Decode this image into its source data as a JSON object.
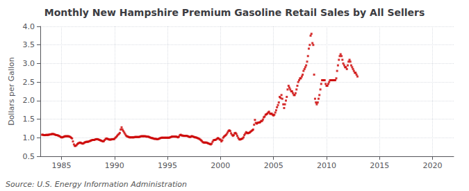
{
  "chart_data": {
    "type": "scatter",
    "title": "Monthly New Hampshire Premium Gasoline Retail Sales by All Sellers",
    "ylabel": "Dollars per Gallon",
    "annotations": [
      "Source: U.S. Energy Information Administration"
    ],
    "color": "#cc0000",
    "marker": "square",
    "grid": true,
    "xlim": [
      1983,
      2022
    ],
    "ylim": [
      0.5,
      4.0
    ],
    "xticks": [
      1985,
      1990,
      1995,
      2000,
      2005,
      2010,
      2015,
      2020
    ],
    "yticks": [
      0.5,
      {
        "value": 1.0,
        "label": "1.0"
      },
      1.5,
      {
        "value": 2.0,
        "label": "2.0"
      },
      2.5,
      {
        "value": 3.0,
        "label": "3.0"
      },
      3.5,
      {
        "value": 4.0,
        "label": "4.0"
      }
    ],
    "x": [
      1983.17,
      1983.25,
      1983.33,
      1983.42,
      1983.5,
      1983.58,
      1983.67,
      1983.75,
      1983.83,
      1983.92,
      1984.0,
      1984.08,
      1984.17,
      1984.25,
      1984.33,
      1984.42,
      1984.5,
      1984.58,
      1984.67,
      1984.75,
      1984.83,
      1984.92,
      1985.0,
      1985.08,
      1985.17,
      1985.25,
      1985.33,
      1985.42,
      1985.5,
      1985.58,
      1985.67,
      1985.75,
      1985.83,
      1985.92,
      1986.0,
      1986.08,
      1986.17,
      1986.25,
      1986.33,
      1986.42,
      1986.5,
      1986.58,
      1986.67,
      1986.75,
      1986.83,
      1986.92,
      1987.0,
      1987.08,
      1987.17,
      1987.25,
      1987.33,
      1987.42,
      1987.5,
      1987.58,
      1987.67,
      1987.75,
      1987.83,
      1987.92,
      1988.0,
      1988.08,
      1988.17,
      1988.25,
      1988.33,
      1988.42,
      1988.5,
      1988.58,
      1988.67,
      1988.75,
      1988.83,
      1988.92,
      1989.0,
      1989.08,
      1989.17,
      1989.25,
      1989.33,
      1989.42,
      1989.5,
      1989.58,
      1989.67,
      1989.75,
      1989.83,
      1989.92,
      1990.0,
      1990.08,
      1990.17,
      1990.25,
      1990.33,
      1990.42,
      1990.5,
      1990.58,
      1990.67,
      1990.75,
      1990.83,
      1990.92,
      1991.0,
      1991.08,
      1991.17,
      1991.25,
      1991.33,
      1991.42,
      1991.5,
      1991.58,
      1991.67,
      1991.75,
      1991.83,
      1991.92,
      1992.0,
      1992.08,
      1992.17,
      1992.25,
      1992.33,
      1992.42,
      1992.5,
      1992.58,
      1992.67,
      1992.75,
      1992.83,
      1992.92,
      1993.0,
      1993.08,
      1993.17,
      1993.25,
      1993.33,
      1993.42,
      1993.5,
      1993.58,
      1993.67,
      1993.75,
      1993.83,
      1993.92,
      1994.0,
      1994.08,
      1994.17,
      1994.25,
      1994.33,
      1994.42,
      1994.5,
      1994.58,
      1994.67,
      1994.75,
      1994.83,
      1994.92,
      1995.0,
      1995.08,
      1995.17,
      1995.25,
      1995.33,
      1995.42,
      1995.5,
      1995.58,
      1995.67,
      1995.75,
      1995.83,
      1995.92,
      1996.0,
      1996.08,
      1996.17,
      1996.25,
      1996.33,
      1996.42,
      1996.5,
      1996.58,
      1996.67,
      1996.75,
      1996.83,
      1996.92,
      1997.0,
      1997.08,
      1997.17,
      1997.25,
      1997.33,
      1997.42,
      1997.5,
      1997.58,
      1997.67,
      1997.75,
      1997.83,
      1997.92,
      1998.0,
      1998.08,
      1998.17,
      1998.25,
      1998.33,
      1998.42,
      1998.5,
      1998.58,
      1998.67,
      1998.75,
      1998.83,
      1998.92,
      1999.0,
      1999.08,
      1999.17,
      1999.25,
      1999.33,
      1999.42,
      1999.5,
      1999.58,
      1999.67,
      1999.75,
      1999.83,
      1999.92,
      2000.0,
      2000.08,
      2000.17,
      2000.25,
      2000.33,
      2000.42,
      2000.5,
      2000.58,
      2000.67,
      2000.75,
      2000.83,
      2000.92,
      2001.0,
      2001.08,
      2001.17,
      2001.25,
      2001.33,
      2001.42,
      2001.5,
      2001.58,
      2001.67,
      2001.75,
      2001.83,
      2001.92,
      2002.0,
      2002.08,
      2002.17,
      2002.25,
      2002.33,
      2002.42,
      2002.5,
      2002.58,
      2002.67,
      2002.75,
      2002.83,
      2002.92,
      2003.0,
      2003.08,
      2003.17,
      2003.25,
      2003.33,
      2003.42,
      2003.5,
      2003.58,
      2003.67,
      2003.75,
      2003.83,
      2003.92,
      2004.0,
      2004.08,
      2004.17,
      2004.25,
      2004.33,
      2004.42,
      2004.5,
      2004.58,
      2004.67,
      2004.75,
      2004.83,
      2004.92,
      2005.0,
      2005.08,
      2005.17,
      2005.25,
      2005.33,
      2005.42,
      2005.5,
      2005.58,
      2005.67,
      2005.75,
      2005.83,
      2005.92,
      2006.0,
      2006.08,
      2006.17,
      2006.25,
      2006.33,
      2006.42,
      2006.5,
      2006.58,
      2006.67,
      2006.75,
      2006.83,
      2006.92,
      2007.0,
      2007.08,
      2007.17,
      2007.25,
      2007.33,
      2007.42,
      2007.5,
      2007.58,
      2007.67,
      2007.75,
      2007.83,
      2007.92,
      2008.0,
      2008.08,
      2008.17,
      2008.25,
      2008.33,
      2008.42,
      2008.5,
      2008.58,
      2008.67,
      2008.75,
      2008.83,
      2008.92,
      2009.0,
      2009.08,
      2009.17,
      2009.25,
      2009.33,
      2009.42,
      2009.5,
      2009.58,
      2009.67,
      2009.75,
      2009.83,
      2009.92,
      2010.0,
      2010.08,
      2010.17,
      2010.25,
      2010.33,
      2010.42,
      2010.5,
      2010.58,
      2010.67,
      2010.75,
      2010.83,
      2010.92,
      2011.0,
      2011.08,
      2011.17,
      2011.25,
      2011.33,
      2011.42,
      2011.5,
      2011.58,
      2011.67,
      2011.75,
      2011.83,
      2011.92,
      2012.0,
      2012.08,
      2012.17,
      2012.25,
      2012.33,
      2012.42,
      2012.5,
      2012.58,
      2012.67,
      2012.75,
      2012.83,
      2012.92
    ],
    "values": [
      1.08,
      1.08,
      1.07,
      1.07,
      1.07,
      1.08,
      1.07,
      1.08,
      1.08,
      1.09,
      1.09,
      1.1,
      1.1,
      1.1,
      1.09,
      1.08,
      1.07,
      1.07,
      1.06,
      1.05,
      1.04,
      1.02,
      1.01,
      1.01,
      1.02,
      1.03,
      1.04,
      1.04,
      1.04,
      1.04,
      1.04,
      1.03,
      1.02,
      1.0,
      0.98,
      0.9,
      0.82,
      0.78,
      0.78,
      0.8,
      0.83,
      0.85,
      0.86,
      0.87,
      0.86,
      0.85,
      0.84,
      0.85,
      0.87,
      0.88,
      0.89,
      0.89,
      0.89,
      0.9,
      0.91,
      0.92,
      0.93,
      0.94,
      0.94,
      0.94,
      0.95,
      0.96,
      0.96,
      0.96,
      0.95,
      0.94,
      0.93,
      0.92,
      0.91,
      0.9,
      0.91,
      0.94,
      0.97,
      0.98,
      0.97,
      0.96,
      0.95,
      0.95,
      0.95,
      0.96,
      0.96,
      0.96,
      0.97,
      1.0,
      1.02,
      1.05,
      1.08,
      1.1,
      1.13,
      1.22,
      1.28,
      1.22,
      1.18,
      1.14,
      1.1,
      1.06,
      1.04,
      1.03,
      1.02,
      1.01,
      1.01,
      1.01,
      1.01,
      1.01,
      1.01,
      1.02,
      1.02,
      1.02,
      1.02,
      1.02,
      1.02,
      1.03,
      1.04,
      1.04,
      1.04,
      1.04,
      1.04,
      1.04,
      1.03,
      1.03,
      1.03,
      1.02,
      1.01,
      1.0,
      0.99,
      0.99,
      0.98,
      0.97,
      0.97,
      0.97,
      0.96,
      0.96,
      0.97,
      0.98,
      0.99,
      1.0,
      1.0,
      1.0,
      1.0,
      1.0,
      1.0,
      1.0,
      1.0,
      1.0,
      1.0,
      1.01,
      1.02,
      1.03,
      1.03,
      1.03,
      1.03,
      1.03,
      1.03,
      1.02,
      1.01,
      1.03,
      1.07,
      1.08,
      1.06,
      1.06,
      1.05,
      1.05,
      1.05,
      1.05,
      1.05,
      1.04,
      1.03,
      1.02,
      1.02,
      1.04,
      1.04,
      1.03,
      1.02,
      1.01,
      1.01,
      1.0,
      0.99,
      0.98,
      0.97,
      0.95,
      0.93,
      0.91,
      0.88,
      0.87,
      0.87,
      0.87,
      0.87,
      0.86,
      0.85,
      0.84,
      0.83,
      0.82,
      0.84,
      0.89,
      0.93,
      0.94,
      0.94,
      0.95,
      0.97,
      0.99,
      0.98,
      0.95,
      0.95,
      0.9,
      0.93,
      1.0,
      1.03,
      1.05,
      1.07,
      1.1,
      1.14,
      1.18,
      1.2,
      1.18,
      1.12,
      1.08,
      1.05,
      1.07,
      1.12,
      1.13,
      1.1,
      1.05,
      1.0,
      0.96,
      0.95,
      0.96,
      0.97,
      0.98,
      1.01,
      1.07,
      1.11,
      1.15,
      1.13,
      1.12,
      1.13,
      1.14,
      1.16,
      1.18,
      1.2,
      1.22,
      1.35,
      1.48,
      1.4,
      1.38,
      1.4,
      1.41,
      1.41,
      1.42,
      1.45,
      1.45,
      1.49,
      1.55,
      1.57,
      1.62,
      1.63,
      1.65,
      1.68,
      1.7,
      1.65,
      1.64,
      1.65,
      1.62,
      1.6,
      1.62,
      1.68,
      1.74,
      1.82,
      1.88,
      1.95,
      2.1,
      2.07,
      2.15,
      2.05,
      1.9,
      1.8,
      1.9,
      2.0,
      2.1,
      2.3,
      2.4,
      2.35,
      2.3,
      2.25,
      2.25,
      2.2,
      2.15,
      2.15,
      2.2,
      2.3,
      2.4,
      2.5,
      2.55,
      2.6,
      2.6,
      2.65,
      2.7,
      2.8,
      2.85,
      2.9,
      2.95,
      3.05,
      3.2,
      3.4,
      3.5,
      3.75,
      3.8,
      3.55,
      3.5,
      2.7,
      2.05,
      1.95,
      1.9,
      1.95,
      2.05,
      2.15,
      2.3,
      2.45,
      2.55,
      2.55,
      2.55,
      2.55,
      2.45,
      2.4,
      2.4,
      2.45,
      2.5,
      2.55,
      2.55,
      2.55,
      2.55,
      2.55,
      2.55,
      2.55,
      2.6,
      2.8,
      2.95,
      3.1,
      3.2,
      3.25,
      3.2,
      3.1,
      3.0,
      2.95,
      2.9,
      2.9,
      2.85,
      2.95,
      3.05,
      3.1,
      3.05,
      2.95,
      2.9,
      2.85,
      2.8,
      2.75,
      2.75,
      2.7,
      2.65
    ]
  }
}
